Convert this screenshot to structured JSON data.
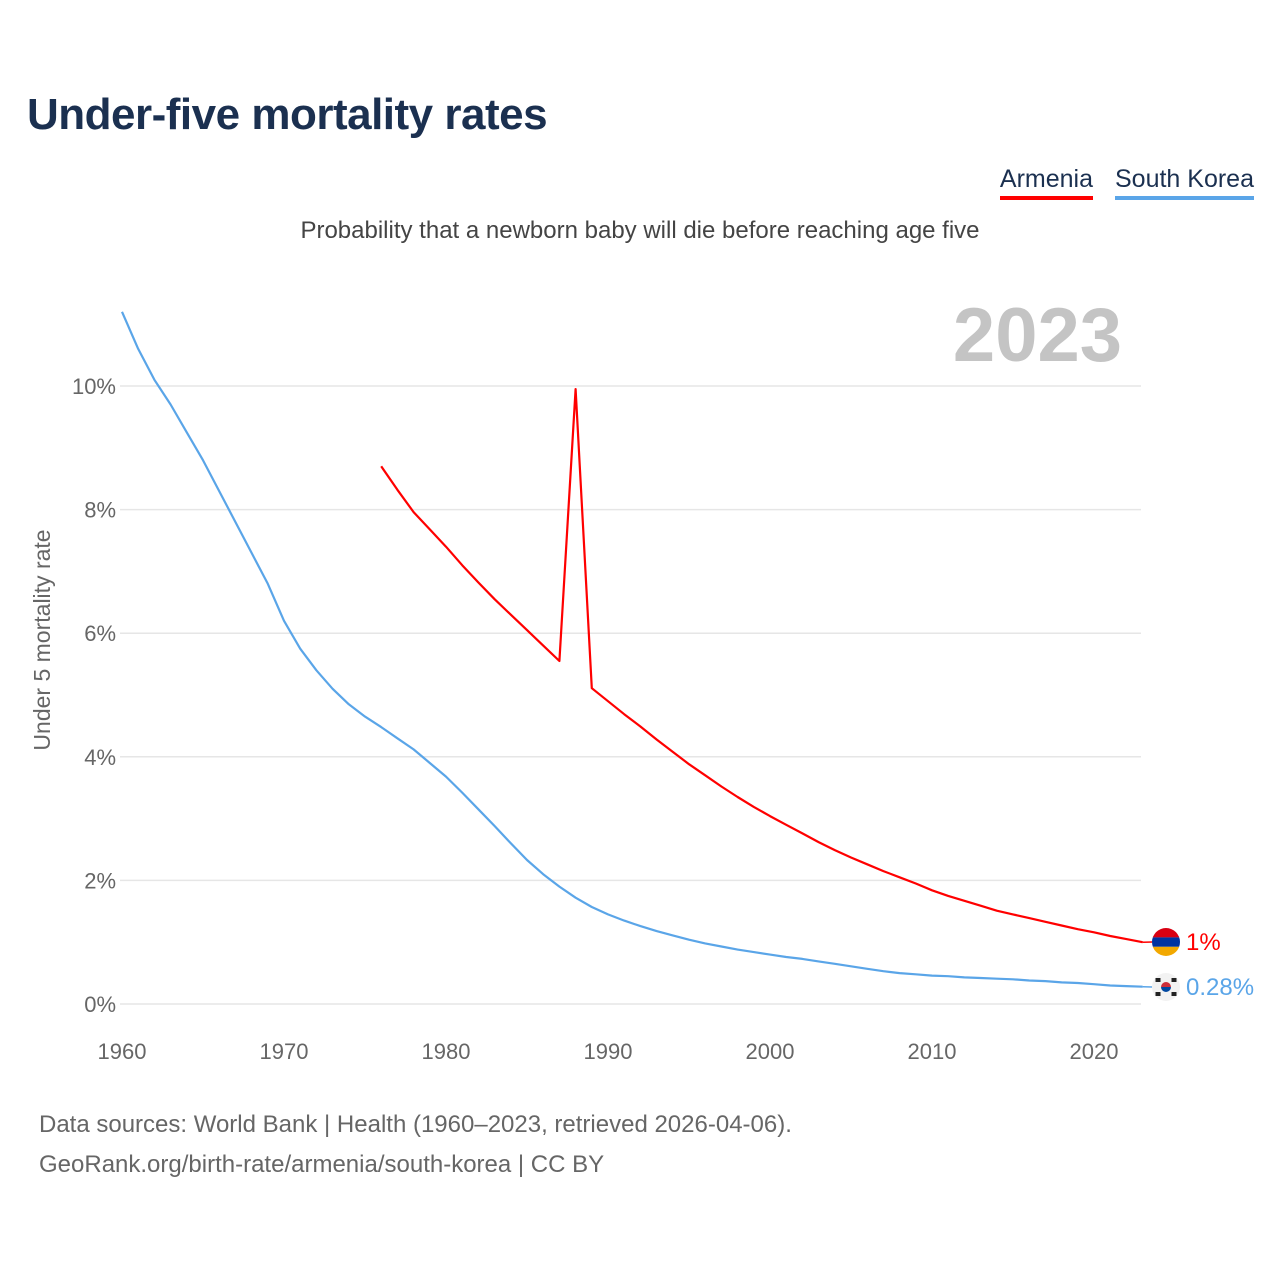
{
  "title": "Under-five mortality rates",
  "subtitle": "Probability that a newborn baby will die before reaching age five",
  "year_display": "2023",
  "legend": [
    {
      "label": "Armenia",
      "color": "#ff0000"
    },
    {
      "label": "South Korea",
      "color": "#5aa5e8"
    }
  ],
  "footer": {
    "line1": "Data sources: World Bank | Health (1960–2023, retrieved 2026-04-06).",
    "line2": "GeoRank.org/birth-rate/armenia/south-korea | CC BY"
  },
  "chart_data": {
    "type": "line",
    "title": "Under-five mortality rates",
    "xlabel": "",
    "ylabel": "Under 5 mortality rate",
    "xlim": [
      1960,
      2023
    ],
    "ylim": [
      0,
      11
    ],
    "grid": true,
    "x_ticks": [
      "1960",
      "1970",
      "1980",
      "1990",
      "2000",
      "2010",
      "2020"
    ],
    "y_ticks": [
      {
        "value": 0,
        "label": "0%"
      },
      {
        "value": 2,
        "label": "2%"
      },
      {
        "value": 4,
        "label": "4%"
      },
      {
        "value": 6,
        "label": "6%"
      },
      {
        "value": 8,
        "label": "8%"
      },
      {
        "value": 10,
        "label": "10%"
      }
    ],
    "legend_position": "top-right",
    "series": [
      {
        "name": "Armenia",
        "color": "#ff0000",
        "end_label": "1%",
        "start_year": 1976,
        "values": [
          8.7,
          8.32,
          7.96,
          7.68,
          7.4,
          7.1,
          6.82,
          6.55,
          6.3,
          6.05,
          5.8,
          5.55,
          9.95,
          5.11,
          4.9,
          4.69,
          4.49,
          4.28,
          4.08,
          3.88,
          3.7,
          3.52,
          3.35,
          3.19,
          3.04,
          2.9,
          2.76,
          2.62,
          2.49,
          2.37,
          2.26,
          2.15,
          2.05,
          1.95,
          1.84,
          1.75,
          1.67,
          1.59,
          1.51,
          1.45,
          1.39,
          1.33,
          1.27,
          1.21,
          1.16,
          1.1,
          1.05,
          1.0
        ]
      },
      {
        "name": "South Korea",
        "color": "#5aa5e8",
        "end_label": "0.28%",
        "start_year": 1960,
        "values": [
          11.2,
          10.6,
          10.1,
          9.7,
          9.25,
          8.8,
          8.3,
          7.8,
          7.3,
          6.8,
          6.2,
          5.75,
          5.4,
          5.1,
          4.85,
          4.65,
          4.48,
          4.3,
          4.12,
          3.9,
          3.68,
          3.42,
          3.15,
          2.88,
          2.6,
          2.33,
          2.1,
          1.9,
          1.72,
          1.57,
          1.45,
          1.35,
          1.26,
          1.18,
          1.11,
          1.04,
          0.98,
          0.93,
          0.88,
          0.84,
          0.8,
          0.76,
          0.73,
          0.69,
          0.65,
          0.61,
          0.57,
          0.53,
          0.5,
          0.48,
          0.46,
          0.45,
          0.43,
          0.42,
          0.41,
          0.4,
          0.38,
          0.37,
          0.35,
          0.34,
          0.32,
          0.3,
          0.29,
          0.28
        ]
      }
    ]
  }
}
